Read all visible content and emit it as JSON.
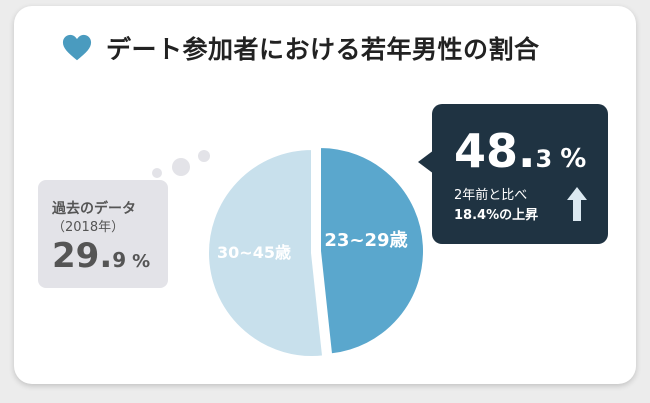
{
  "title": "デート参加者における若年男性の割合",
  "colors": {
    "accent": "#4a9bbf",
    "slice_young": "#5aa7cd",
    "slice_old": "#c8e0ec",
    "callout_bg": "#1f3342",
    "past_bg": "#e3e3e8"
  },
  "past_data": {
    "label": "過去のデータ",
    "year": "（2018年）",
    "value_int": "29.",
    "value_dec": "9",
    "unit": "%"
  },
  "callout": {
    "value_int": "48.",
    "value_dec": "3",
    "unit": "%",
    "line1": "2年前と比べ",
    "line2": "18.4%の上昇",
    "arrow_icon": "arrow-up-icon"
  },
  "chart_data": {
    "type": "pie",
    "title": "デート参加者における若年男性の割合",
    "slices": [
      {
        "label": "23~29歳",
        "value": 48.3,
        "color": "#5aa7cd"
      },
      {
        "label": "30~45歳",
        "value": 51.7,
        "color": "#c8e0ec"
      }
    ]
  }
}
